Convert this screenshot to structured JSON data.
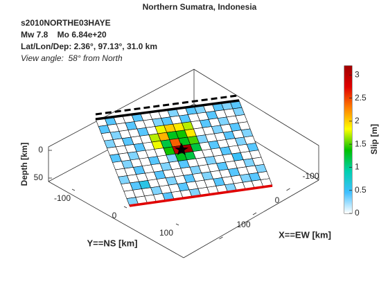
{
  "chart_data": {
    "type": "fault-slip-3d",
    "title": "Northern Sumatra, Indonesia",
    "event_id": "s2010NORTHE03HAYE",
    "magnitude_line": "Mw 7.8    Mo 6.84e+20",
    "location_line": "Lat/Lon/Dep: 2.36°, 97.13°, 31.0 km",
    "view_line": "View angle:  58° from North",
    "x_label": "X==EW [km]",
    "y_label": "Y==NS [km]",
    "z_label": "Depth [km]",
    "colorbar_label": "Slip [m]",
    "xticks": [
      -100,
      0,
      100
    ],
    "yticks": [
      -100,
      0,
      100
    ],
    "zticks": [
      0,
      50
    ],
    "clim": [
      0,
      3.2
    ],
    "cticks": [
      0,
      0.5,
      1,
      1.5,
      2,
      2.5,
      3
    ],
    "colormap": [
      "#ffffff",
      "#3fbfff",
      "#00d0b0",
      "#00c000",
      "#ffff00",
      "#ff8000",
      "#e00000",
      "#a00000"
    ],
    "slip": [
      [
        0,
        0.4,
        0,
        0,
        0.4,
        0,
        0,
        0,
        0.3,
        0,
        0.4,
        0.3,
        0,
        0.4,
        0.3,
        0.4
      ],
      [
        0.4,
        0,
        0,
        0.4,
        0,
        0,
        0.3,
        0.4,
        0,
        0.4,
        0,
        0,
        0.4,
        0,
        0,
        0.3
      ],
      [
        0,
        0.3,
        0,
        0,
        0.4,
        0,
        1.8,
        2.0,
        1.9,
        1.7,
        0,
        0.4,
        0,
        0.3,
        0,
        0
      ],
      [
        0.3,
        0,
        0.4,
        0,
        0,
        1.7,
        2.1,
        1.3,
        1.4,
        1.9,
        0,
        0,
        0.3,
        0,
        0.4,
        0
      ],
      [
        0,
        0,
        0,
        0.4,
        0,
        1.8,
        1.2,
        2.4,
        1.3,
        1.5,
        0.3,
        0,
        0,
        0.4,
        0,
        0.3
      ],
      [
        0.4,
        0,
        0.3,
        0,
        0,
        0,
        1.4,
        3.0,
        3.2,
        1.2,
        0,
        0.4,
        0,
        0,
        0.3,
        0
      ],
      [
        0,
        0.3,
        0,
        0,
        0.4,
        0,
        0.3,
        1.3,
        1.2,
        0,
        0,
        0,
        0.4,
        0,
        0,
        0.4
      ],
      [
        0,
        0,
        0.4,
        0,
        0,
        0.3,
        0,
        0.4,
        0,
        0,
        0.3,
        0,
        0,
        0.5,
        0,
        0
      ],
      [
        0.3,
        0,
        0,
        0,
        0.4,
        0,
        0,
        0,
        0.3,
        0,
        0,
        0.4,
        0,
        0,
        0.3,
        0
      ],
      [
        0,
        0.4,
        0.6,
        0,
        0,
        0.3,
        0,
        0.4,
        0,
        0.3,
        0,
        0,
        0.4,
        0,
        0,
        0.3
      ],
      [
        0,
        0,
        0,
        0.3,
        0,
        0,
        0.4,
        0,
        0,
        0,
        0.4,
        0,
        0,
        0.3,
        0.4,
        0
      ],
      [
        0.3,
        0,
        0,
        0,
        0.4,
        0,
        0,
        0.3,
        0,
        0,
        0,
        0.3,
        0,
        0,
        0,
        0
      ]
    ]
  }
}
